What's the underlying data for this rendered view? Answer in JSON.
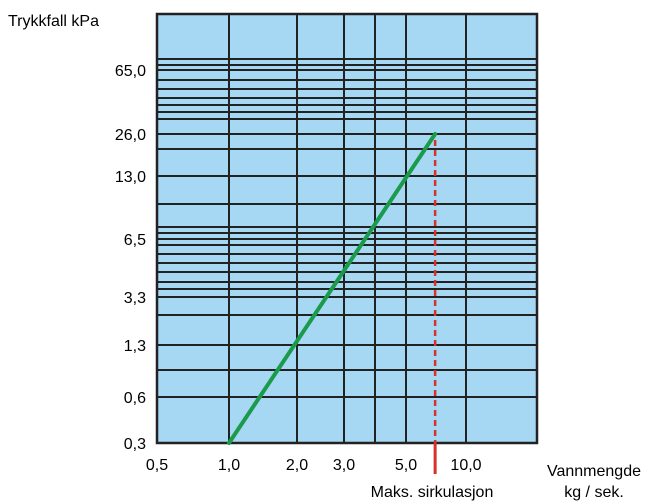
{
  "chart_data": {
    "type": "line",
    "ylabel": "Trykkfall kPa",
    "xlabel_line1": "Vannmengde",
    "xlabel_line2": "kg / sek.",
    "x_ticks": [
      "0,5",
      "1,0",
      "2,0",
      "3,0",
      "5,0",
      "10,0"
    ],
    "y_ticks": [
      "0,3",
      "0,6",
      "1,3",
      "3,3",
      "6,5",
      "13,0",
      "26,0",
      "65,0"
    ],
    "series": [
      {
        "color": "#1a9a4a",
        "points": [
          {
            "x": "1,0",
            "y": "0,3"
          },
          {
            "x": "7,0",
            "y": "26,0"
          }
        ]
      }
    ],
    "annotation": {
      "label": "Maks. sirkulasjon",
      "x": "7,0",
      "color": "#d8302a"
    },
    "plot_background": "#a6d8f4",
    "grid_color": "#222222",
    "grid": true
  }
}
